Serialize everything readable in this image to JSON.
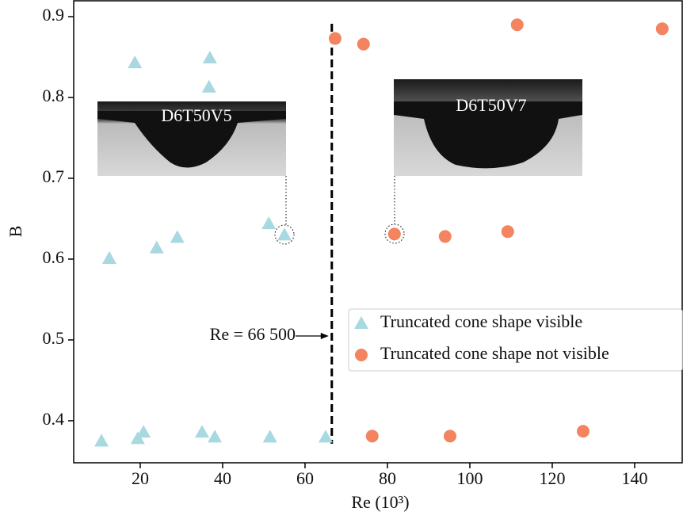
{
  "chart_data": {
    "type": "scatter",
    "xlabel": "Re (10³)",
    "ylabel": "B",
    "xlim": [
      3.85,
      151.7
    ],
    "ylim": [
      0.348,
      0.92
    ],
    "xticks": [
      20,
      40,
      60,
      80,
      100,
      120,
      140
    ],
    "yticks": [
      0.4,
      0.5,
      0.6,
      0.7,
      0.8,
      0.9
    ],
    "series": [
      {
        "name": "Truncated cone shape visible",
        "color": "#a8d8e0",
        "marker": "triangle",
        "x": [
          10.6,
          12.5,
          18.7,
          19.4,
          20.8,
          24.0,
          29.0,
          35.0,
          36.9,
          36.7,
          38.1,
          51.2,
          51.5,
          55.0,
          65.0
        ],
        "y": [
          0.375,
          0.601,
          0.843,
          0.378,
          0.386,
          0.614,
          0.627,
          0.386,
          0.849,
          0.813,
          0.38,
          0.644,
          0.38,
          0.63,
          0.38
        ]
      },
      {
        "name": "Truncated cone shape not visible",
        "color": "#f4845f",
        "marker": "circle",
        "x": [
          67.3,
          74.2,
          76.3,
          81.7,
          94.0,
          95.2,
          109.2,
          111.5,
          127.5,
          146.7
        ],
        "y": [
          0.873,
          0.866,
          0.381,
          0.631,
          0.628,
          0.381,
          0.634,
          0.89,
          0.387,
          0.885
        ]
      }
    ],
    "threshold": {
      "value": 66.5,
      "label": "Re = 66 500"
    },
    "insets": [
      "D6T50V5",
      "D6T50V7"
    ]
  }
}
